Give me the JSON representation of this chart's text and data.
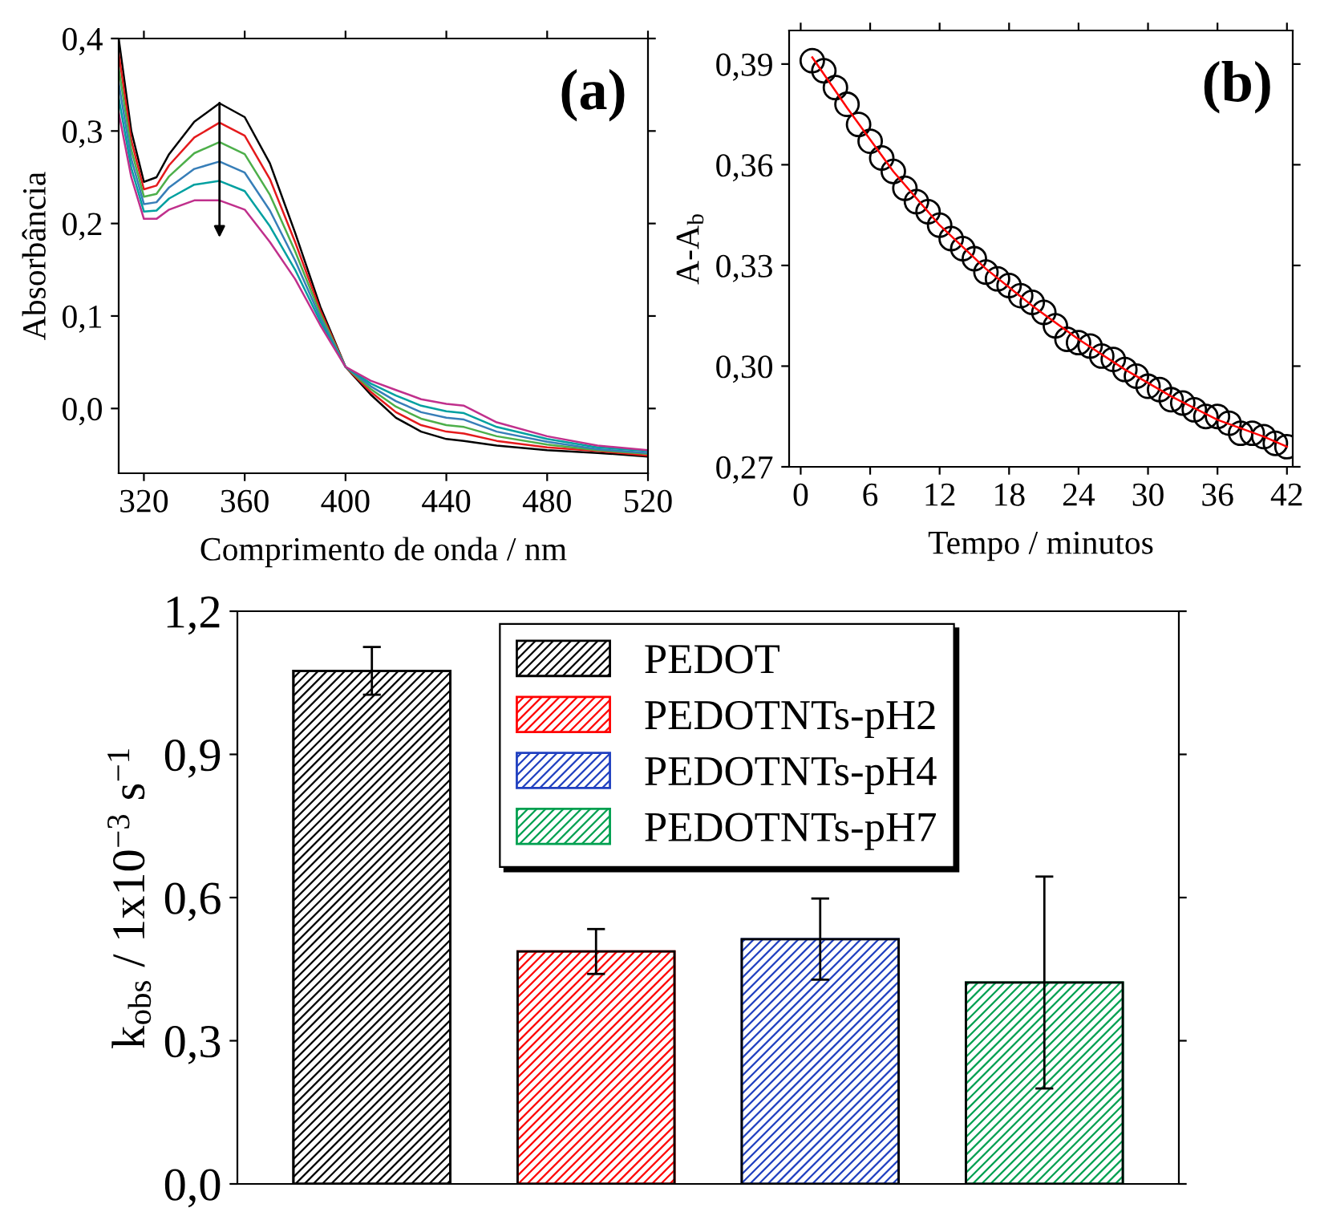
{
  "chart_data": [
    {
      "type": "line",
      "xlabel": "Comprimento de onda / nm",
      "ylabel": "Absorbância",
      "annotations": [
        "(a)"
      ],
      "x": [
        310,
        315,
        320,
        325,
        330,
        340,
        350,
        360,
        370,
        380,
        390,
        400,
        410,
        420,
        430,
        440,
        447,
        460,
        480,
        500,
        520
      ],
      "xlim": [
        310,
        520
      ],
      "xticks": [
        320,
        360,
        400,
        440,
        480,
        520
      ],
      "ylim": [
        -0.07,
        0.4
      ],
      "yticks": [
        {
          "value": 0.0,
          "label": "0,0"
        },
        {
          "value": 0.1,
          "label": "0,1"
        },
        {
          "value": 0.2,
          "label": "0,2"
        },
        {
          "value": 0.3,
          "label": "0,3"
        },
        {
          "value": 0.4,
          "label": "0,4"
        }
      ],
      "grid": false,
      "legend": false,
      "marker": "none",
      "line_style": "solid",
      "series": [
        {
          "color": "#000000",
          "values": [
            0.4,
            0.3,
            0.245,
            0.25,
            0.275,
            0.31,
            0.33,
            0.315,
            0.265,
            0.19,
            0.11,
            0.045,
            0.015,
            -0.01,
            -0.025,
            -0.033,
            -0.035,
            -0.04,
            -0.045,
            -0.048,
            -0.052
          ]
        },
        {
          "color": "#e41a1c",
          "values": [
            0.384,
            0.29,
            0.237,
            0.241,
            0.263,
            0.293,
            0.309,
            0.295,
            0.248,
            0.18,
            0.106,
            0.045,
            0.018,
            -0.004,
            -0.018,
            -0.025,
            -0.027,
            -0.035,
            -0.042,
            -0.046,
            -0.051
          ]
        },
        {
          "color": "#4daf4a",
          "values": [
            0.368,
            0.28,
            0.229,
            0.232,
            0.251,
            0.276,
            0.288,
            0.275,
            0.231,
            0.17,
            0.102,
            0.045,
            0.021,
            0.002,
            -0.011,
            -0.018,
            -0.02,
            -0.03,
            -0.039,
            -0.045,
            -0.049
          ]
        },
        {
          "color": "#377eb8",
          "values": [
            0.352,
            0.27,
            0.221,
            0.223,
            0.239,
            0.259,
            0.267,
            0.255,
            0.214,
            0.16,
            0.098,
            0.045,
            0.024,
            0.008,
            -0.004,
            -0.01,
            -0.012,
            -0.025,
            -0.036,
            -0.044,
            -0.048
          ]
        },
        {
          "color": "#00a0a0",
          "values": [
            0.336,
            0.26,
            0.213,
            0.214,
            0.227,
            0.242,
            0.246,
            0.235,
            0.197,
            0.15,
            0.094,
            0.045,
            0.027,
            0.014,
            0.003,
            -0.003,
            -0.005,
            -0.02,
            -0.033,
            -0.042,
            -0.046
          ]
        },
        {
          "color": "#c0308c",
          "values": [
            0.32,
            0.25,
            0.205,
            0.205,
            0.215,
            0.225,
            0.225,
            0.215,
            0.18,
            0.14,
            0.09,
            0.045,
            0.03,
            0.02,
            0.01,
            0.005,
            0.003,
            -0.015,
            -0.03,
            -0.04,
            -0.045
          ]
        }
      ]
    },
    {
      "type": "scatter",
      "xlabel": "Tempo / minutos",
      "ylabel": "A-A$_{b}$",
      "annotations": [
        "(b)"
      ],
      "xlim": [
        -1,
        42.5
      ],
      "xticks": [
        0,
        6,
        12,
        18,
        24,
        30,
        36,
        42
      ],
      "ylim": [
        0.27,
        0.4
      ],
      "yticks": [
        {
          "value": 0.27,
          "label": "0,27"
        },
        {
          "value": 0.3,
          "label": "0,30"
        },
        {
          "value": 0.33,
          "label": "0,33"
        },
        {
          "value": 0.36,
          "label": "0,36"
        },
        {
          "value": 0.39,
          "label": "0,39"
        }
      ],
      "grid": false,
      "legend": false,
      "series": [
        {
          "type": "scatter",
          "marker": "circle",
          "color": "#000000",
          "x": [
            1,
            2,
            3,
            4,
            5,
            6,
            7,
            8,
            9,
            10,
            11,
            12,
            13,
            14,
            15,
            16,
            17,
            18,
            19,
            20,
            21,
            22,
            23,
            24,
            25,
            26,
            27,
            28,
            29,
            30,
            31,
            32,
            33,
            34,
            35,
            36,
            37,
            38,
            39,
            40,
            41,
            42
          ],
          "values": [
            0.391,
            0.388,
            0.383,
            0.378,
            0.372,
            0.367,
            0.362,
            0.358,
            0.353,
            0.349,
            0.346,
            0.342,
            0.338,
            0.335,
            0.332,
            0.328,
            0.326,
            0.324,
            0.321,
            0.319,
            0.316,
            0.312,
            0.308,
            0.307,
            0.306,
            0.303,
            0.302,
            0.299,
            0.297,
            0.294,
            0.293,
            0.29,
            0.289,
            0.287,
            0.285,
            0.285,
            0.283,
            0.28,
            0.28,
            0.279,
            0.277,
            0.276
          ]
        },
        {
          "type": "line",
          "marker": "none",
          "line_style": "solid",
          "color": "#ff0000",
          "x": [
            1,
            4,
            8,
            12,
            16,
            20,
            24,
            28,
            32,
            36,
            40,
            42
          ],
          "values": [
            0.392,
            0.377,
            0.358,
            0.342,
            0.329,
            0.318,
            0.308,
            0.299,
            0.291,
            0.284,
            0.279,
            0.276
          ]
        }
      ]
    },
    {
      "type": "bar",
      "ylabel": "k$_{obs}$ / 1x10$^{−3}$ s$^{−1}$",
      "categories": [
        null,
        null,
        null,
        null
      ],
      "ylim": [
        0,
        1.2
      ],
      "yticks": [
        {
          "value": 0.0,
          "label": "0,0"
        },
        {
          "value": 0.3,
          "label": "0,3"
        },
        {
          "value": 0.6,
          "label": "0,6"
        },
        {
          "value": 0.9,
          "label": "0,9"
        },
        {
          "value": 1.2,
          "label": "1,2"
        }
      ],
      "tick_labels": "y",
      "grid": false,
      "legend": "top",
      "series": [
        {
          "name": "PEDOT",
          "color": "#000000",
          "values": [
            1.075,
            null,
            null,
            null
          ],
          "errors": [
            0.05,
            null,
            null,
            null
          ]
        },
        {
          "name": "PEDOTNTs-pH2",
          "color": "#ff0000",
          "values": [
            null,
            0.487,
            null,
            null
          ],
          "errors": [
            null,
            0.047,
            null,
            null
          ]
        },
        {
          "name": "PEDOTNTs-pH4",
          "color": "#2040c0",
          "values": [
            null,
            null,
            0.513,
            null
          ],
          "errors": [
            null,
            null,
            0.085,
            null
          ]
        },
        {
          "name": "PEDOTNTs-pH7",
          "color": "#00a050",
          "values": [
            null,
            null,
            null,
            0.422
          ],
          "errors": [
            null,
            null,
            null,
            0.222
          ]
        }
      ]
    }
  ]
}
